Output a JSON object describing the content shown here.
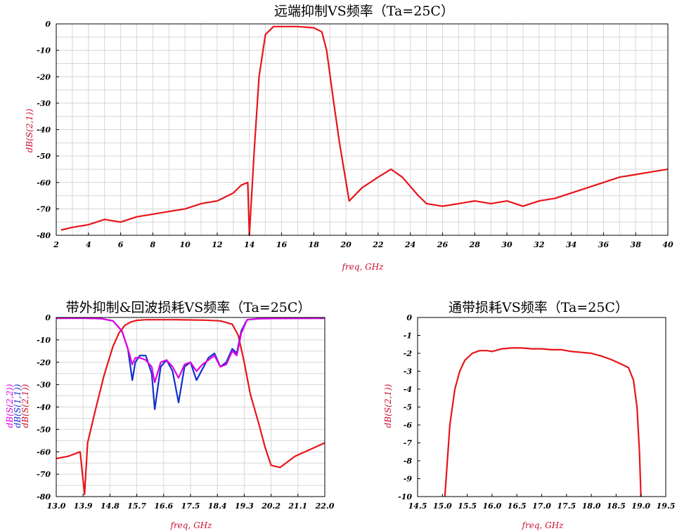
{
  "charts": [
    {
      "key": "top",
      "title": "远端抑制VS频率（Ta=25C）",
      "xlabel": "freq, GHz",
      "xlim": [
        2,
        40
      ],
      "ylim": [
        -80,
        0
      ],
      "xticks": [
        "2",
        "4",
        "6",
        "8",
        "10",
        "12",
        "14",
        "16",
        "18",
        "20",
        "22",
        "24",
        "26",
        "28",
        "30",
        "32",
        "34",
        "36",
        "38",
        "40"
      ],
      "yticks": [
        "0",
        "-10",
        "-20",
        "-30",
        "-40",
        "-50",
        "-60",
        "-70",
        "-80"
      ],
      "ylabels": [
        {
          "text": "dB(S(2,1))",
          "color": "#c8102e"
        }
      ]
    },
    {
      "key": "bl",
      "title": "带外抑制&回波损耗VS频率（Ta=25C）",
      "xlabel": "freq, GHz",
      "xlim": [
        13.0,
        22.0
      ],
      "ylim": [
        -80,
        0
      ],
      "xticks": [
        "13.0",
        "13.9",
        "14.8",
        "15.7",
        "16.6",
        "17.5",
        "18.4",
        "19.3",
        "20.2",
        "21.1",
        "22.0"
      ],
      "yticks": [
        "0",
        "-10",
        "-20",
        "-30",
        "-40",
        "-50",
        "-60",
        "-70",
        "-80"
      ],
      "ylabels": [
        {
          "text": "dB(S(2,2))",
          "color": "#e000e0"
        },
        {
          "text": "dB(S(1,1))",
          "color": "#1030d0"
        },
        {
          "text": "dB(S(2,1))",
          "color": "#c8102e"
        }
      ]
    },
    {
      "key": "br",
      "title": "通带损耗VS频率（Ta=25C）",
      "xlabel": "freq, GHz",
      "xlim": [
        14.5,
        19.5
      ],
      "ylim": [
        -10,
        0
      ],
      "xticks": [
        "14.5",
        "15.0",
        "15.5",
        "16.0",
        "16.5",
        "17.0",
        "17.5",
        "18.0",
        "18.5",
        "19.0",
        "19.5"
      ],
      "yticks": [
        "0",
        "-1",
        "-2",
        "-3",
        "-4",
        "-5",
        "-6",
        "-7",
        "-8",
        "-9",
        "-10"
      ],
      "ylabels": [
        {
          "text": "dB(S(2,1))",
          "color": "#c8102e"
        }
      ]
    }
  ],
  "chart_data": [
    {
      "type": "line",
      "title": "远端抑制VS频率（Ta=25C）",
      "xlabel": "freq, GHz",
      "ylabel": "dB(S(2,1))",
      "xlim": [
        2,
        40
      ],
      "ylim": [
        -80,
        0
      ],
      "grid": true,
      "series": [
        {
          "name": "dB(S(2,1))",
          "color": "#e8141a",
          "x": [
            2.3,
            3,
            4,
            5,
            6,
            7,
            8,
            9,
            10,
            11,
            12,
            13,
            13.5,
            13.9,
            14.0,
            14.3,
            14.6,
            15.0,
            15.5,
            16.0,
            17.0,
            18.0,
            18.5,
            18.8,
            19.2,
            19.6,
            19.9,
            20.2,
            21,
            22,
            22.8,
            23.5,
            24.5,
            25,
            26,
            27,
            28,
            29,
            30,
            31,
            32,
            33,
            34,
            35,
            36,
            37,
            38,
            39,
            40
          ],
          "y": [
            -78,
            -77,
            -76,
            -74,
            -75,
            -73,
            -72,
            -71,
            -70,
            -68,
            -67,
            -64,
            -61,
            -60,
            -80,
            -48,
            -20,
            -4,
            -1,
            -1,
            -1,
            -1.5,
            -3,
            -10,
            -28,
            -45,
            -56,
            -67,
            -62,
            -58,
            -55,
            -58,
            -65,
            -68,
            -69,
            -68,
            -67,
            -68,
            -67,
            -69,
            -67,
            -66,
            -64,
            -62,
            -60,
            -58,
            -57,
            -56,
            -55
          ]
        }
      ]
    },
    {
      "type": "line",
      "title": "带外抑制&回波损耗VS频率（Ta=25C）",
      "xlabel": "freq, GHz",
      "xlim": [
        13.0,
        22.0
      ],
      "ylim": [
        -80,
        0
      ],
      "grid": true,
      "series": [
        {
          "name": "dB(S(2,1))",
          "color": "#e8141a",
          "x": [
            13.0,
            13.4,
            13.8,
            13.95,
            14.05,
            14.3,
            14.6,
            14.9,
            15.1,
            15.3,
            15.5,
            15.7,
            16.0,
            17.0,
            18.0,
            18.5,
            18.9,
            19.1,
            19.3,
            19.5,
            19.8,
            20.0,
            20.2,
            20.5,
            21.0,
            21.5,
            22.0
          ],
          "y": [
            -63,
            -62,
            -60,
            -79,
            -56,
            -42,
            -26,
            -13,
            -7,
            -3.5,
            -2,
            -1.3,
            -1.0,
            -1.0,
            -1.2,
            -1.5,
            -3,
            -8,
            -20,
            -34,
            -48,
            -58,
            -66,
            -67,
            -62,
            -59,
            -56
          ]
        },
        {
          "name": "dB(S(1,1))",
          "color": "#1030d0",
          "x": [
            13.0,
            14.0,
            14.5,
            14.9,
            15.2,
            15.4,
            15.55,
            15.65,
            15.8,
            16.0,
            16.2,
            16.3,
            16.5,
            16.7,
            16.9,
            17.1,
            17.3,
            17.5,
            17.7,
            17.9,
            18.1,
            18.3,
            18.5,
            18.7,
            18.9,
            19.05,
            19.2,
            19.4,
            19.8,
            20.5,
            22.0
          ],
          "y": [
            -0.3,
            -0.3,
            -0.5,
            -1.5,
            -6,
            -14,
            -28,
            -20,
            -17,
            -17,
            -25,
            -41,
            -22,
            -19,
            -24,
            -38,
            -22,
            -20,
            -28,
            -23,
            -18,
            -16,
            -22,
            -20,
            -14,
            -16,
            -6,
            -1,
            -0.5,
            -0.4,
            -0.3
          ]
        },
        {
          "name": "dB(S(2,2))",
          "color": "#e000e0",
          "x": [
            13.0,
            14.0,
            14.5,
            14.9,
            15.2,
            15.4,
            15.55,
            15.65,
            15.8,
            16.0,
            16.2,
            16.3,
            16.5,
            16.7,
            16.9,
            17.1,
            17.3,
            17.5,
            17.7,
            17.9,
            18.1,
            18.3,
            18.5,
            18.7,
            18.9,
            19.05,
            19.2,
            19.4,
            19.8,
            20.5,
            22.0
          ],
          "y": [
            -0.3,
            -0.3,
            -0.5,
            -1.5,
            -6,
            -14,
            -21,
            -18,
            -18,
            -19,
            -22,
            -29,
            -20,
            -19,
            -22,
            -27,
            -21,
            -20,
            -24,
            -21,
            -19,
            -17,
            -22,
            -21,
            -15,
            -17,
            -7,
            -1,
            -0.5,
            -0.4,
            -0.3
          ]
        }
      ]
    },
    {
      "type": "line",
      "title": "通带损耗VS频率（Ta=25C）",
      "xlabel": "freq, GHz",
      "ylabel": "dB(S(2,1))",
      "xlim": [
        14.5,
        19.5
      ],
      "ylim": [
        -10,
        0
      ],
      "grid": false,
      "series": [
        {
          "name": "dB(S(2,1))",
          "color": "#e8141a",
          "x": [
            15.05,
            15.15,
            15.25,
            15.35,
            15.45,
            15.6,
            15.75,
            15.9,
            16.0,
            16.2,
            16.4,
            16.6,
            16.8,
            17.0,
            17.2,
            17.4,
            17.6,
            17.8,
            18.0,
            18.2,
            18.4,
            18.6,
            18.75,
            18.85,
            18.92,
            18.97,
            19.0
          ],
          "y": [
            -10,
            -6,
            -4,
            -3,
            -2.4,
            -2.0,
            -1.85,
            -1.85,
            -1.9,
            -1.75,
            -1.7,
            -1.7,
            -1.75,
            -1.75,
            -1.8,
            -1.8,
            -1.9,
            -1.95,
            -2.0,
            -2.15,
            -2.35,
            -2.6,
            -2.8,
            -3.5,
            -5.0,
            -7.5,
            -10
          ]
        }
      ]
    }
  ]
}
